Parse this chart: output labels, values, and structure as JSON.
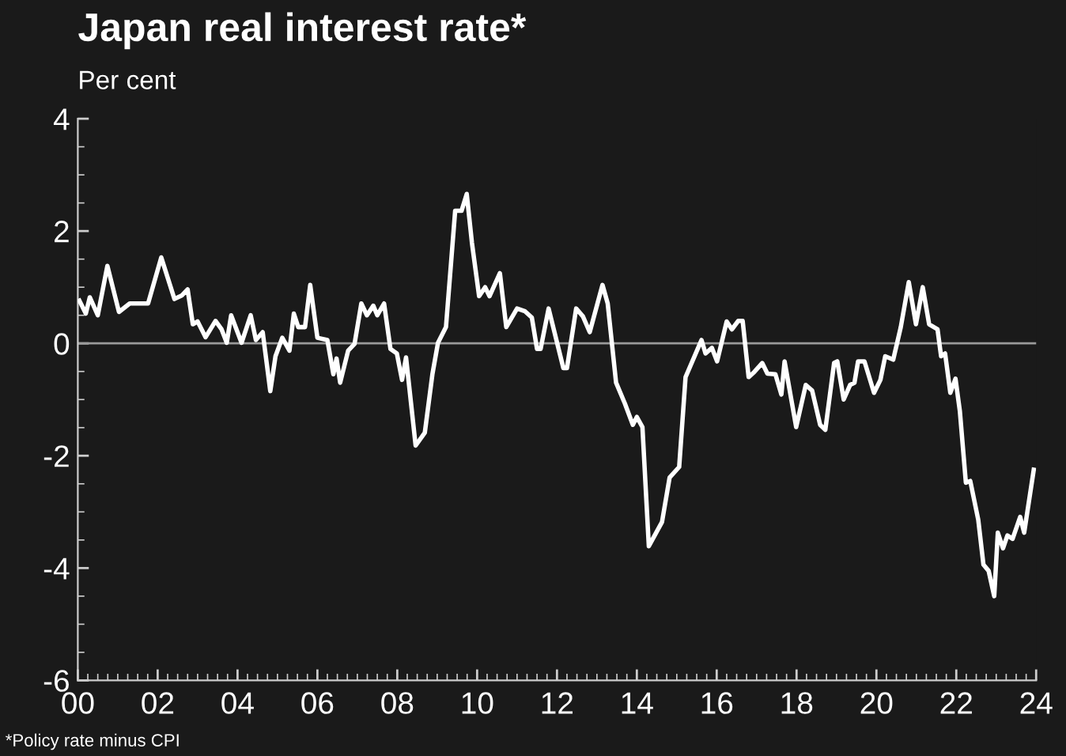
{
  "chart_data": {
    "type": "line",
    "title": "Japan real interest rate*",
    "ylabel": "Per cent",
    "annotations": [
      "*Policy rate minus CPI"
    ],
    "xlim": [
      2000,
      2024
    ],
    "ylim": [
      -6,
      4
    ],
    "xticks": [
      {
        "value": 2000,
        "label": "00"
      },
      {
        "value": 2002,
        "label": "02"
      },
      {
        "value": 2004,
        "label": "04"
      },
      {
        "value": 2006,
        "label": "06"
      },
      {
        "value": 2008,
        "label": "08"
      },
      {
        "value": 2010,
        "label": "10"
      },
      {
        "value": 2012,
        "label": "12"
      },
      {
        "value": 2014,
        "label": "14"
      },
      {
        "value": 2016,
        "label": "16"
      },
      {
        "value": 2018,
        "label": "18"
      },
      {
        "value": 2020,
        "label": "20"
      },
      {
        "value": 2022,
        "label": "22"
      },
      {
        "value": 2024,
        "label": "24"
      }
    ],
    "yticks": [
      -6,
      -4,
      -2,
      0,
      2,
      4
    ],
    "ref_lines": [
      {
        "axis": "y",
        "value": 0,
        "color": "#9a9a9a"
      }
    ],
    "grid": false,
    "legend": false,
    "marker": "none",
    "line_style": "solid",
    "series": [
      {
        "color": "#ffffff",
        "x": [
          2000.04,
          2000.2,
          2000.3,
          2000.5,
          2000.74,
          2001.03,
          2001.3,
          2001.76,
          2002.09,
          2002.42,
          2002.6,
          2002.75,
          2002.88,
          2003.0,
          2003.2,
          2003.45,
          2003.6,
          2003.73,
          2003.84,
          2004.1,
          2004.33,
          2004.46,
          2004.63,
          2004.82,
          2004.95,
          2005.12,
          2005.3,
          2005.41,
          2005.52,
          2005.69,
          2005.82,
          2006.0,
          2006.25,
          2006.4,
          2006.48,
          2006.57,
          2006.77,
          2006.93,
          2007.1,
          2007.24,
          2007.4,
          2007.5,
          2007.67,
          2007.83,
          2007.99,
          2008.12,
          2008.22,
          2008.46,
          2008.69,
          2008.88,
          2009.02,
          2009.22,
          2009.45,
          2009.61,
          2009.74,
          2009.87,
          2010.05,
          2010.2,
          2010.31,
          2010.57,
          2010.73,
          2011.0,
          2011.2,
          2011.37,
          2011.5,
          2011.59,
          2011.79,
          2012.16,
          2012.25,
          2012.48,
          2012.65,
          2012.82,
          2013.14,
          2013.27,
          2013.48,
          2013.7,
          2013.9,
          2014.0,
          2014.14,
          2014.3,
          2014.63,
          2014.82,
          2015.06,
          2015.22,
          2015.62,
          2015.72,
          2015.88,
          2016.01,
          2016.25,
          2016.38,
          2016.54,
          2016.65,
          2016.8,
          2016.94,
          2017.14,
          2017.27,
          2017.47,
          2017.62,
          2017.7,
          2017.99,
          2018.23,
          2018.39,
          2018.59,
          2018.72,
          2018.94,
          2019.02,
          2019.18,
          2019.34,
          2019.45,
          2019.54,
          2019.7,
          2019.94,
          2020.1,
          2020.22,
          2020.42,
          2020.61,
          2020.81,
          2020.99,
          2021.16,
          2021.32,
          2021.53,
          2021.62,
          2021.72,
          2021.85,
          2021.98,
          2022.09,
          2022.24,
          2022.35,
          2022.55,
          2022.68,
          2022.81,
          2022.95,
          2023.04,
          2023.17,
          2023.28,
          2023.41,
          2023.6,
          2023.7,
          2023.94
        ],
        "values": [
          0.76,
          0.53,
          0.82,
          0.5,
          1.38,
          0.56,
          0.71,
          0.71,
          1.53,
          0.79,
          0.85,
          0.96,
          0.34,
          0.39,
          0.11,
          0.4,
          0.25,
          0.01,
          0.5,
          0.01,
          0.5,
          0.06,
          0.2,
          -0.85,
          -0.23,
          0.1,
          -0.13,
          0.53,
          0.29,
          0.29,
          1.04,
          0.1,
          0.06,
          -0.55,
          -0.27,
          -0.7,
          -0.13,
          -0.01,
          0.71,
          0.5,
          0.67,
          0.5,
          0.71,
          -0.1,
          -0.18,
          -0.65,
          -0.25,
          -1.82,
          -1.59,
          -0.55,
          0.01,
          0.29,
          2.36,
          2.36,
          2.66,
          1.79,
          0.84,
          1.0,
          0.84,
          1.25,
          0.29,
          0.62,
          0.57,
          0.46,
          -0.1,
          -0.1,
          0.62,
          -0.44,
          -0.44,
          0.62,
          0.48,
          0.2,
          1.04,
          0.71,
          -0.7,
          -1.07,
          -1.45,
          -1.31,
          -1.49,
          -3.61,
          -3.18,
          -2.39,
          -2.2,
          -0.6,
          0.06,
          -0.18,
          -0.08,
          -0.32,
          0.39,
          0.25,
          0.4,
          0.4,
          -0.6,
          -0.51,
          -0.35,
          -0.54,
          -0.55,
          -0.91,
          -0.32,
          -1.49,
          -0.74,
          -0.84,
          -1.45,
          -1.54,
          -0.35,
          -0.32,
          -1.0,
          -0.74,
          -0.7,
          -0.32,
          -0.32,
          -0.88,
          -0.65,
          -0.23,
          -0.29,
          0.29,
          1.09,
          0.34,
          1.0,
          0.34,
          0.25,
          -0.23,
          -0.18,
          -0.88,
          -0.63,
          -1.21,
          -2.48,
          -2.45,
          -3.14,
          -3.94,
          -4.05,
          -4.5,
          -3.37,
          -3.65,
          -3.42,
          -3.48,
          -3.09,
          -3.37,
          -2.25
        ]
      }
    ]
  }
}
